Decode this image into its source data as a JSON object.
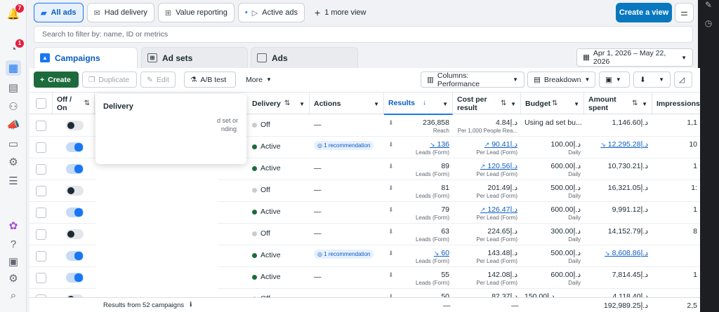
{
  "left_rail": {
    "notifications_badge": "7",
    "account_badge": "1"
  },
  "views": {
    "tabs": [
      {
        "label": "All ads"
      },
      {
        "label": "Had delivery"
      },
      {
        "label": "Value reporting"
      },
      {
        "label": "Active ads"
      }
    ],
    "more_view": "1 more view",
    "create_view": "Create a view"
  },
  "filter": {
    "placeholder": "Search to filter by: name, ID or metrics"
  },
  "levels": {
    "campaigns": "Campaigns",
    "adsets": "Ad sets",
    "ads": "Ads"
  },
  "date_range": "Apr 1, 2026 – May 22, 2026",
  "toolbar": {
    "create": "Create",
    "duplicate": "Duplicate",
    "edit": "Edit",
    "ab_test": "A/B test",
    "more": "More",
    "columns": "Columns: Performance",
    "breakdown": "Breakdown"
  },
  "headers": {
    "off_on": "Off /",
    "off_on2": "On",
    "delivery": "Delivery",
    "actions": "Actions",
    "results": "Results",
    "cost_per": "Cost per",
    "cost_per2": "result",
    "budget": "Budget",
    "amount": "Amount",
    "amount2": "spent",
    "impressions": "Impressions"
  },
  "tooltip": {
    "title": "Delivery",
    "frag1": "d set or",
    "frag2": "nding"
  },
  "rows": [
    {
      "on": false,
      "delivery": "Off",
      "actions": "—",
      "result": "236,858",
      "result_sub": "Reach",
      "result_link": false,
      "cost": "4.84د.إ",
      "cost_sub": "Per 1,000 People Rea...",
      "cost_link": false,
      "budget": "Using ad set bu...",
      "budget_sub": "",
      "spent": "1,146.60د.إ",
      "spent_link": false,
      "impr": "1,1"
    },
    {
      "on": true,
      "delivery": "Active",
      "actions": "1 recommendation",
      "result": "136",
      "result_sub": "Leads (Form)",
      "result_link": true,
      "cost": "90.41د.إ",
      "cost_sub": "Per Lead (Form)",
      "cost_link": true,
      "budget": "100.00د.إ",
      "budget_sub": "Daily",
      "spent": "12,295.28د.إ",
      "spent_link": true,
      "impr": "10"
    },
    {
      "on": true,
      "delivery": "Active",
      "actions": "—",
      "result": "89",
      "result_sub": "Leads (Form)",
      "result_link": false,
      "cost": "120.56د.إ",
      "cost_sub": "Per Lead (Form)",
      "cost_link": true,
      "budget": "600.00د.إ",
      "budget_sub": "Daily",
      "spent": "10,730.21د.إ",
      "spent_link": false,
      "impr": "1"
    },
    {
      "on": false,
      "delivery": "Off",
      "actions": "—",
      "result": "81",
      "result_sub": "Leads (Form)",
      "result_link": false,
      "cost": "201.49د.إ",
      "cost_sub": "Per Lead (Form)",
      "cost_link": false,
      "budget": "500.00د.إ",
      "budget_sub": "Daily",
      "spent": "16,321.05د.إ",
      "spent_link": false,
      "impr": "1:"
    },
    {
      "on": true,
      "delivery": "Active",
      "actions": "—",
      "result": "79",
      "result_sub": "Leads (Form)",
      "result_link": false,
      "cost": "126.47د.إ",
      "cost_sub": "Per Lead (Form)",
      "cost_link": true,
      "budget": "600.00د.إ",
      "budget_sub": "Daily",
      "spent": "9,991.12د.إ",
      "spent_link": false,
      "impr": "1"
    },
    {
      "on": false,
      "delivery": "Off",
      "actions": "—",
      "result": "63",
      "result_sub": "Leads (Form)",
      "result_link": false,
      "cost": "224.65د.إ",
      "cost_sub": "Per Lead (Form)",
      "cost_link": false,
      "budget": "300.00د.إ",
      "budget_sub": "Daily",
      "spent": "14,152.79د.إ",
      "spent_link": false,
      "impr": "8"
    },
    {
      "on": true,
      "delivery": "Active",
      "actions": "1 recommendation",
      "result": "60",
      "result_sub": "Leads (Form)",
      "result_link": true,
      "cost": "143.48د.إ",
      "cost_sub": "Per Lead (Form)",
      "cost_link": false,
      "budget": "500.00د.إ",
      "budget_sub": "Daily",
      "spent": "8,608.86د.إ",
      "spent_link": true,
      "impr": ""
    },
    {
      "on": true,
      "delivery": "Active",
      "actions": "—",
      "result": "55",
      "result_sub": "Leads (Form)",
      "result_link": false,
      "cost": "142.08د.إ",
      "cost_sub": "Per Lead (Form)",
      "cost_link": false,
      "budget": "600.00د.إ",
      "budget_sub": "Daily",
      "spent": "7,814.45د.إ",
      "spent_link": false,
      "impr": "1"
    },
    {
      "on": false,
      "delivery": "Off",
      "actions": "—",
      "result": "50",
      "result_sub": "",
      "result_link": false,
      "cost": "82.37د.إ",
      "cost_sub": "",
      "cost_link": false,
      "budget": "150.00د.إ",
      "budget_sub": "",
      "spent": "4,118.40د.إ",
      "spent_link": false,
      "impr": ""
    }
  ],
  "footer": {
    "label": "Results from 52 campaigns",
    "result": "—",
    "cost": "—",
    "spent": "192,989.25د.إ",
    "impr": "2,5"
  }
}
